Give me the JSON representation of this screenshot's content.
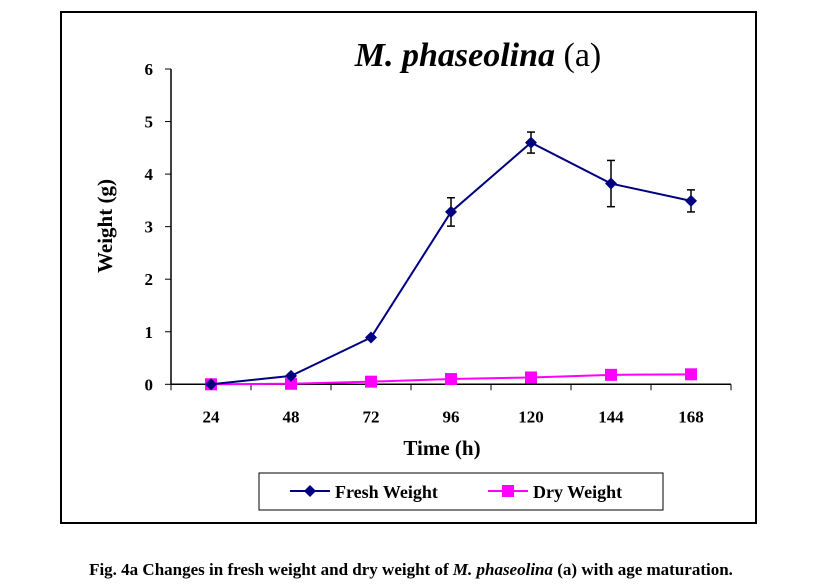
{
  "chart_data": {
    "type": "line",
    "title": "M. phaseolina",
    "title_suffix": "(a)",
    "xlabel": "Time (h)",
    "ylabel": "Weight (g)",
    "categories": [
      "24",
      "48",
      "72",
      "96",
      "120",
      "144",
      "168"
    ],
    "ylim": [
      0,
      6
    ],
    "yticks": [
      "0",
      "1",
      "2",
      "3",
      "4",
      "5",
      "6"
    ],
    "grid": false,
    "legend_position": "bottom",
    "series": [
      {
        "name": "Fresh Weight",
        "color": "#000080",
        "marker": "diamond",
        "values": [
          0,
          0.16,
          0.89,
          3.28,
          4.6,
          3.82,
          3.49
        ],
        "errors": [
          null,
          null,
          null,
          0.27,
          0.2,
          0.44,
          0.21
        ]
      },
      {
        "name": "Dry Weight",
        "color": "#FF00FF",
        "marker": "square",
        "values": [
          0,
          0.01,
          0.05,
          0.1,
          0.13,
          0.18,
          0.19
        ]
      }
    ]
  },
  "caption": {
    "prefix": "Fig. 4a Changes in fresh weight and dry weight of ",
    "species": "M. phaseolina",
    "suffix": " (a) with age maturation."
  }
}
